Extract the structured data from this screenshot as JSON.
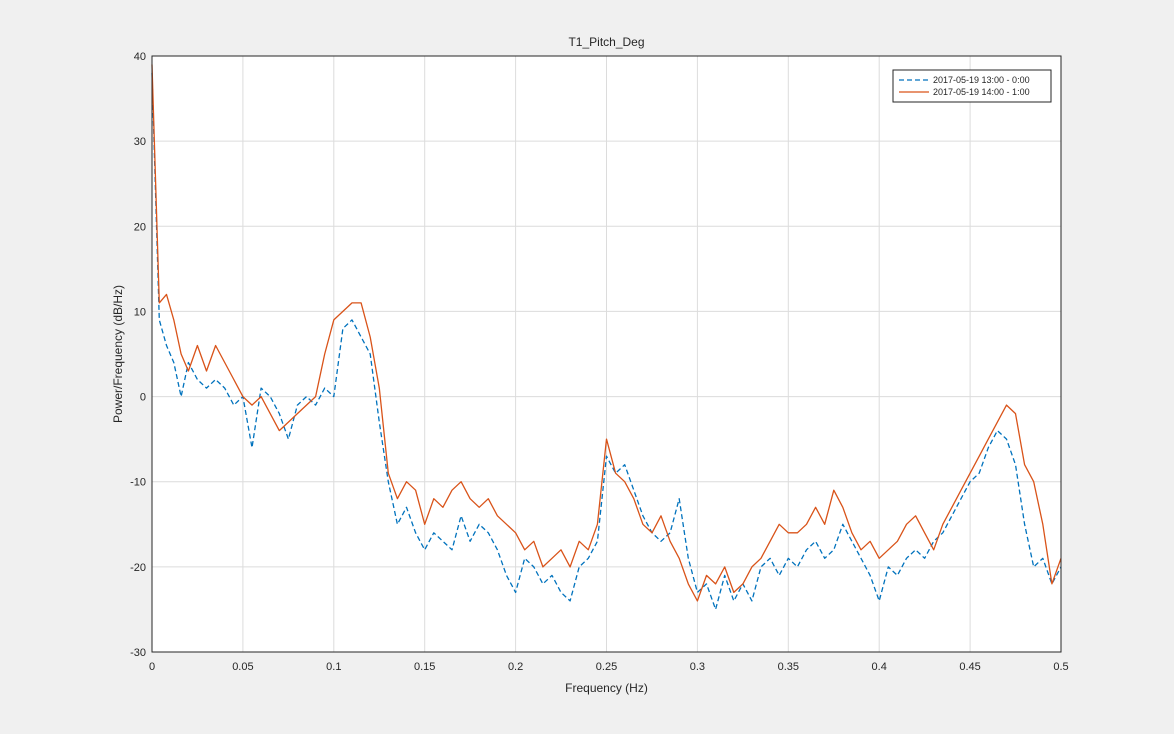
{
  "chart_data": {
    "type": "line",
    "title": "T1_Pitch_Deg",
    "xlabel": "Frequency (Hz)",
    "ylabel": "Power/Frequency (dB/Hz)",
    "xlim": [
      0,
      0.5
    ],
    "ylim": [
      -30,
      40
    ],
    "xticks": [
      0,
      0.05,
      0.1,
      0.15,
      0.2,
      0.25,
      0.3,
      0.35,
      0.4,
      0.45,
      0.5
    ],
    "xtick_labels": [
      "0",
      "0.05",
      "0.1",
      "0.15",
      "0.2",
      "0.25",
      "0.3",
      "0.35",
      "0.4",
      "0.45",
      "0.5"
    ],
    "yticks": [
      -30,
      -20,
      -10,
      0,
      10,
      20,
      30,
      40
    ],
    "ytick_labels": [
      "-30",
      "-20",
      "-10",
      "0",
      "10",
      "20",
      "30",
      "40"
    ],
    "grid": true,
    "legend_position": "top-right",
    "series": [
      {
        "name": "2017-05-19 13:00 - 0:00",
        "color": "#0072bd",
        "dashed": true,
        "x": [
          0,
          0.004,
          0.008,
          0.012,
          0.016,
          0.02,
          0.025,
          0.03,
          0.035,
          0.04,
          0.045,
          0.05,
          0.055,
          0.06,
          0.065,
          0.07,
          0.075,
          0.08,
          0.085,
          0.09,
          0.095,
          0.1,
          0.105,
          0.11,
          0.115,
          0.12,
          0.125,
          0.13,
          0.135,
          0.14,
          0.145,
          0.15,
          0.155,
          0.16,
          0.165,
          0.17,
          0.175,
          0.18,
          0.185,
          0.19,
          0.195,
          0.2,
          0.205,
          0.21,
          0.215,
          0.22,
          0.225,
          0.23,
          0.235,
          0.24,
          0.245,
          0.25,
          0.255,
          0.26,
          0.265,
          0.27,
          0.275,
          0.28,
          0.285,
          0.29,
          0.295,
          0.3,
          0.305,
          0.31,
          0.315,
          0.32,
          0.325,
          0.33,
          0.335,
          0.34,
          0.345,
          0.35,
          0.355,
          0.36,
          0.365,
          0.37,
          0.375,
          0.38,
          0.385,
          0.39,
          0.395,
          0.4,
          0.405,
          0.41,
          0.415,
          0.42,
          0.425,
          0.43,
          0.435,
          0.44,
          0.445,
          0.45,
          0.455,
          0.46,
          0.465,
          0.47,
          0.475,
          0.48,
          0.485,
          0.49,
          0.495,
          0.5
        ],
        "y": [
          38,
          9,
          6,
          4,
          0,
          4,
          2,
          1,
          2,
          1,
          -1,
          0,
          -6,
          1,
          0,
          -2,
          -5,
          -1,
          0,
          -1,
          1,
          0,
          8,
          9,
          7,
          5,
          -3,
          -10,
          -15,
          -13,
          -16,
          -18,
          -16,
          -17,
          -18,
          -14,
          -17,
          -15,
          -16,
          -18,
          -21,
          -23,
          -19,
          -20,
          -22,
          -21,
          -23,
          -24,
          -20,
          -19,
          -17,
          -7,
          -9,
          -8,
          -11,
          -14,
          -16,
          -17,
          -16,
          -12,
          -19,
          -23,
          -22,
          -25,
          -21,
          -24,
          -22,
          -24,
          -20,
          -19,
          -21,
          -19,
          -20,
          -18,
          -17,
          -19,
          -18,
          -15,
          -17,
          -19,
          -21,
          -24,
          -20,
          -21,
          -19,
          -18,
          -19,
          -17,
          -16,
          -14,
          -12,
          -10,
          -9,
          -6,
          -4,
          -5,
          -8,
          -15,
          -20,
          -19,
          -22,
          -20
        ]
      },
      {
        "name": "2017-05-19 14:00 - 1:00",
        "color": "#d95319",
        "dashed": false,
        "x": [
          0,
          0.004,
          0.008,
          0.012,
          0.016,
          0.02,
          0.025,
          0.03,
          0.035,
          0.04,
          0.045,
          0.05,
          0.055,
          0.06,
          0.065,
          0.07,
          0.075,
          0.08,
          0.085,
          0.09,
          0.095,
          0.1,
          0.105,
          0.11,
          0.115,
          0.12,
          0.125,
          0.13,
          0.135,
          0.14,
          0.145,
          0.15,
          0.155,
          0.16,
          0.165,
          0.17,
          0.175,
          0.18,
          0.185,
          0.19,
          0.195,
          0.2,
          0.205,
          0.21,
          0.215,
          0.22,
          0.225,
          0.23,
          0.235,
          0.24,
          0.245,
          0.25,
          0.255,
          0.26,
          0.265,
          0.27,
          0.275,
          0.28,
          0.285,
          0.29,
          0.295,
          0.3,
          0.305,
          0.31,
          0.315,
          0.32,
          0.325,
          0.33,
          0.335,
          0.34,
          0.345,
          0.35,
          0.355,
          0.36,
          0.365,
          0.37,
          0.375,
          0.38,
          0.385,
          0.39,
          0.395,
          0.4,
          0.405,
          0.41,
          0.415,
          0.42,
          0.425,
          0.43,
          0.435,
          0.44,
          0.445,
          0.45,
          0.455,
          0.46,
          0.465,
          0.47,
          0.475,
          0.48,
          0.485,
          0.49,
          0.495,
          0.5
        ],
        "y": [
          39,
          11,
          12,
          9,
          5,
          3,
          6,
          3,
          6,
          4,
          2,
          0,
          -1,
          0,
          -2,
          -4,
          -3,
          -2,
          -1,
          0,
          5,
          9,
          10,
          11,
          11,
          7,
          1,
          -9,
          -12,
          -10,
          -11,
          -15,
          -12,
          -13,
          -11,
          -10,
          -12,
          -13,
          -12,
          -14,
          -15,
          -16,
          -18,
          -17,
          -20,
          -19,
          -18,
          -20,
          -17,
          -18,
          -15,
          -5,
          -9,
          -10,
          -12,
          -15,
          -16,
          -14,
          -17,
          -19,
          -22,
          -24,
          -21,
          -22,
          -20,
          -23,
          -22,
          -20,
          -19,
          -17,
          -15,
          -16,
          -16,
          -15,
          -13,
          -15,
          -11,
          -13,
          -16,
          -18,
          -17,
          -19,
          -18,
          -17,
          -15,
          -14,
          -16,
          -18,
          -15,
          -13,
          -11,
          -9,
          -7,
          -5,
          -3,
          -1,
          -2,
          -8,
          -10,
          -15,
          -22,
          -19
        ]
      }
    ]
  }
}
